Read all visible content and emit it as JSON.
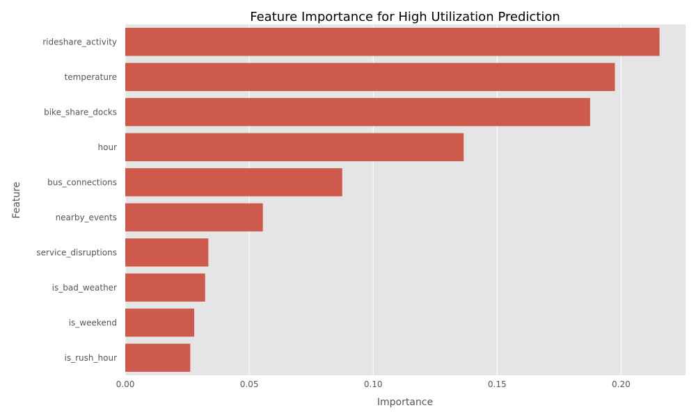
{
  "chart_data": {
    "type": "bar",
    "orientation": "horizontal",
    "title": "Feature Importance for High Utilization Prediction",
    "xlabel": "Importance",
    "ylabel": "Feature",
    "categories": [
      "rideshare_activity",
      "temperature",
      "bike_share_docks",
      "hour",
      "bus_connections",
      "nearby_events",
      "service_disruptions",
      "is_bad_weather",
      "is_weekend",
      "is_rush_hour"
    ],
    "values": [
      0.2155,
      0.1975,
      0.1875,
      0.1365,
      0.0875,
      0.0555,
      0.0335,
      0.0322,
      0.0278,
      0.0262
    ],
    "xlim": [
      0,
      0.226
    ],
    "xticks": [
      0.0,
      0.05,
      0.1,
      0.15,
      0.2
    ],
    "xtick_labels": [
      "0.00",
      "0.05",
      "0.10",
      "0.15",
      "0.20"
    ],
    "grid": true,
    "legend": "none",
    "colors": {
      "bar": "#cd5a4a",
      "plot_background": "#e5e5e5",
      "grid": "#ffffff",
      "title": "#000000",
      "text": "#555555"
    }
  }
}
